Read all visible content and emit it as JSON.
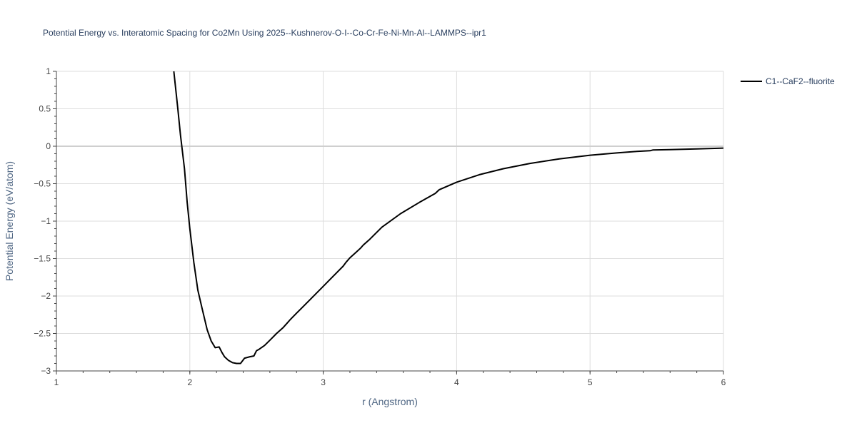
{
  "chart_data": {
    "type": "line",
    "title": "Potential Energy vs. Interatomic Spacing for Co2Mn Using 2025--Kushnerov-O-I--Co-Cr-Fe-Ni-Mn-Al--LAMMPS--ipr1",
    "xlabel": "r (Angstrom)",
    "ylabel": "Potential Energy (eV/atom)",
    "xlim": [
      1,
      6
    ],
    "ylim": [
      -3,
      1
    ],
    "x_ticks": [
      1,
      2,
      3,
      4,
      5,
      6
    ],
    "y_ticks": [
      1,
      0.5,
      0,
      -0.5,
      -1,
      -1.5,
      -2,
      -2.5,
      -3
    ],
    "y_tick_labels": [
      "1",
      "0.5",
      "0",
      "−0.5",
      "−1",
      "−1.5",
      "−2",
      "−2.5",
      "−3"
    ],
    "grid": true,
    "legend_position": "top-right",
    "series": [
      {
        "name": "C1--CaF2--fluorite",
        "color": "#000000",
        "x": [
          1.88,
          1.91,
          1.93,
          1.96,
          1.98,
          2.0,
          2.03,
          2.06,
          2.09,
          2.13,
          2.16,
          2.19,
          2.22,
          2.24,
          2.26,
          2.29,
          2.32,
          2.35,
          2.38,
          2.41,
          2.43,
          2.45,
          2.48,
          2.5,
          2.52,
          2.56,
          2.6,
          2.65,
          2.7,
          2.73,
          2.75,
          2.8,
          2.85,
          2.9,
          2.95,
          3.0,
          3.05,
          3.1,
          3.15,
          3.17,
          3.2,
          3.25,
          3.28,
          3.3,
          3.35,
          3.44,
          3.58,
          3.72,
          3.84,
          3.87,
          4.0,
          4.17,
          4.35,
          4.55,
          4.77,
          5.0,
          5.2,
          5.35,
          5.45,
          5.47,
          5.6,
          5.8,
          6.0
        ],
        "y": [
          1.0,
          0.5,
          0.15,
          -0.3,
          -0.75,
          -1.1,
          -1.55,
          -1.92,
          -2.15,
          -2.45,
          -2.6,
          -2.69,
          -2.68,
          -2.75,
          -2.81,
          -2.86,
          -2.89,
          -2.9,
          -2.9,
          -2.83,
          -2.82,
          -2.81,
          -2.8,
          -2.73,
          -2.71,
          -2.66,
          -2.59,
          -2.5,
          -2.42,
          -2.36,
          -2.32,
          -2.23,
          -2.14,
          -2.05,
          -1.96,
          -1.87,
          -1.78,
          -1.69,
          -1.6,
          -1.55,
          -1.49,
          -1.41,
          -1.36,
          -1.32,
          -1.24,
          -1.08,
          -0.9,
          -0.75,
          -0.63,
          -0.58,
          -0.48,
          -0.38,
          -0.3,
          -0.23,
          -0.17,
          -0.12,
          -0.09,
          -0.07,
          -0.06,
          -0.05,
          -0.045,
          -0.035,
          -0.025
        ]
      }
    ]
  }
}
